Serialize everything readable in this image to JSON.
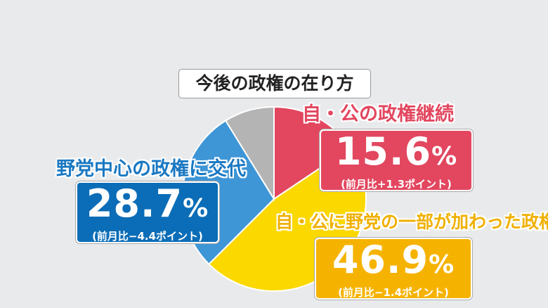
{
  "chart_data": {
    "type": "pie",
    "title": "今後の政権の在り方",
    "slices": [
      {
        "label": "自・公の政権継続",
        "value": 15.6,
        "value_text": "15.6",
        "change": "(前月比+1.3ポイント)",
        "color": "#e2475f",
        "box_color": "#e2475f",
        "label_color": "#e2475f"
      },
      {
        "label": "自・公に野党の一部が加わった政権",
        "value": 46.9,
        "value_text": "46.9",
        "change": "(前月比−1.4ポイント)",
        "color": "#fbd800",
        "box_color": "#f5b300",
        "label_color": "#f0b000"
      },
      {
        "label": "野党中心の政権に交代",
        "value": 28.7,
        "value_text": "28.7",
        "change": "(前月比−4.4ポイント)",
        "color": "#3f96d6",
        "box_color": "#0b6db7",
        "label_color": "#1a78c2"
      },
      {
        "label": "",
        "value": 8.8,
        "color": "#b4b4b4"
      }
    ],
    "unit": "%",
    "start_angle": "top",
    "direction": "clockwise"
  }
}
